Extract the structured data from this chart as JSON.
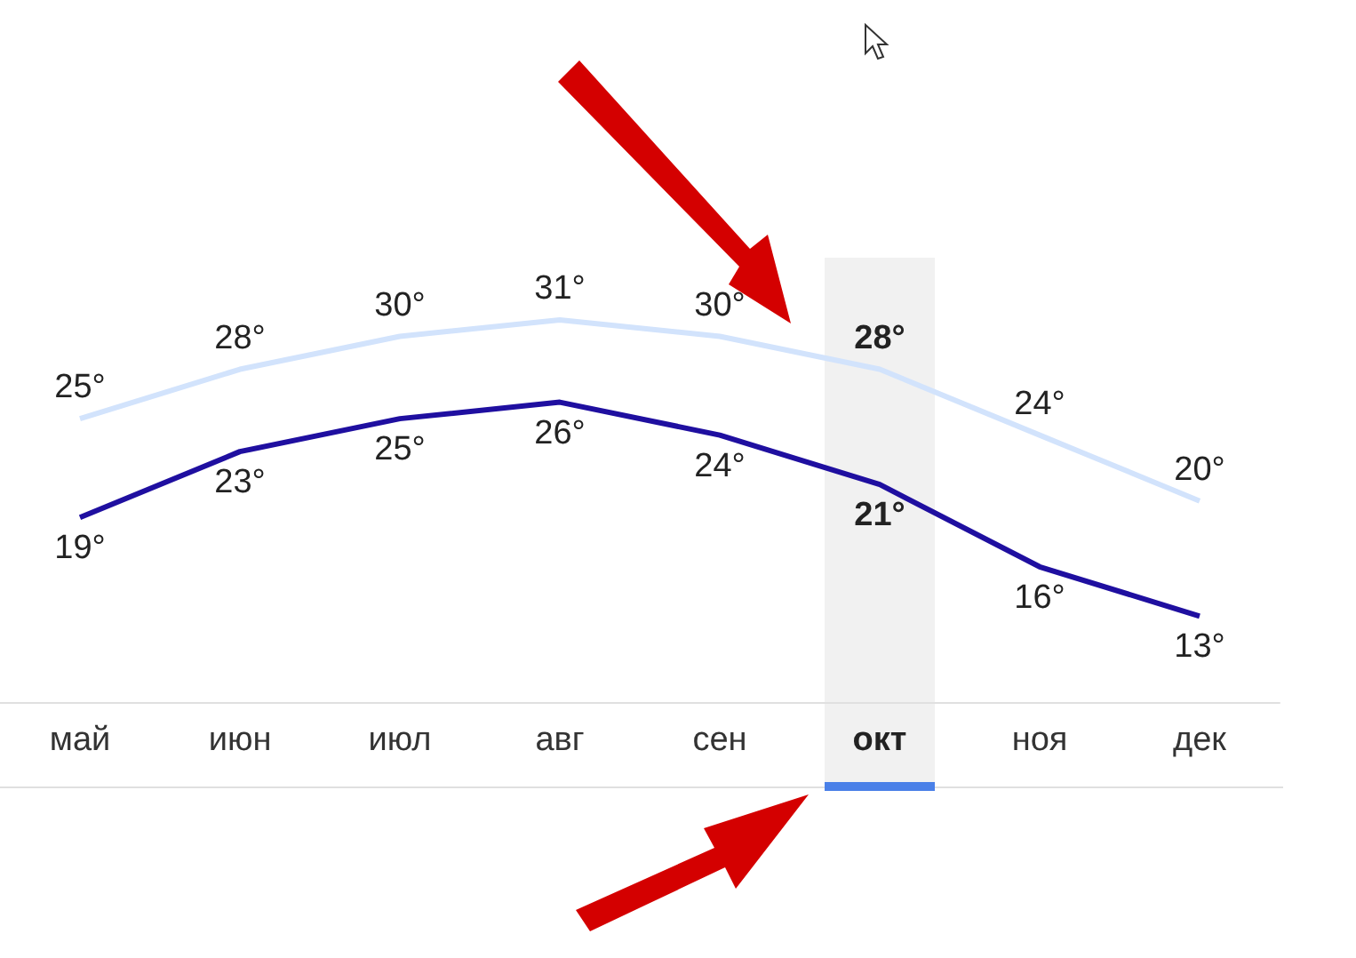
{
  "chart_data": {
    "type": "line",
    "categories": [
      "май",
      "июн",
      "июл",
      "авг",
      "сен",
      "окт",
      "ноя",
      "дек"
    ],
    "series": [
      {
        "color": "#d2e3fc",
        "values": [
          25,
          28,
          30,
          31,
          30,
          28,
          24,
          20
        ],
        "value_labels": [
          "25°",
          "28°",
          "30°",
          "31°",
          "30°",
          "28°",
          "24°",
          "20°"
        ]
      },
      {
        "color": "#1f0fa0",
        "values": [
          19,
          23,
          25,
          26,
          24,
          21,
          16,
          13
        ],
        "value_labels": [
          "19°",
          "23°",
          "25°",
          "26°",
          "24°",
          "21°",
          "16°",
          "13°"
        ]
      }
    ],
    "bands": [
      {
        "axis": "x",
        "from": "окт",
        "to": "окт",
        "color": "#f1f1f1"
      }
    ],
    "grid": false,
    "marker": "none",
    "line_style": "solid"
  }
}
